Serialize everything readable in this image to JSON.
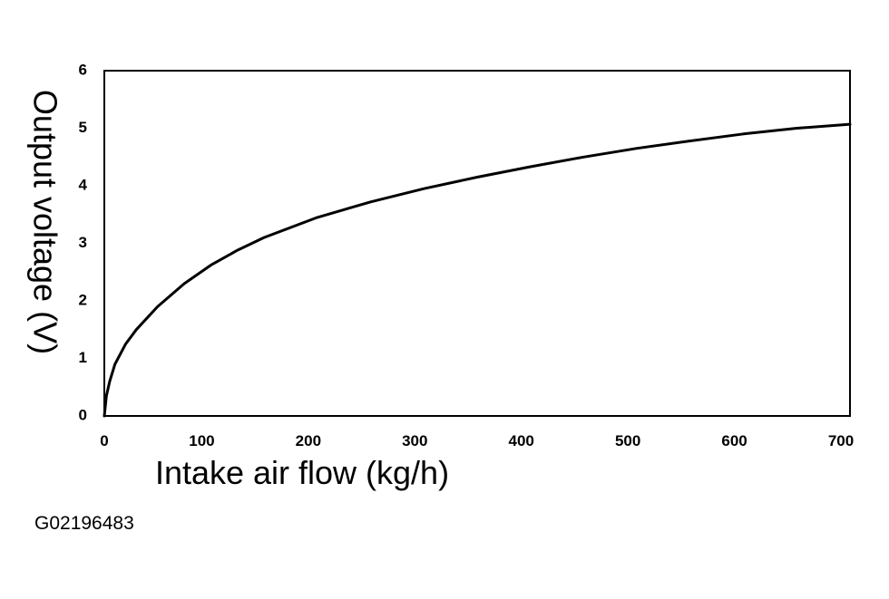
{
  "chart_data": {
    "type": "line",
    "title": "",
    "xlabel": "Intake air flow (kg/h)",
    "ylabel": "Output voltage (V)",
    "xlim": [
      0,
      700
    ],
    "ylim": [
      0,
      6
    ],
    "xticks": [
      0,
      100,
      200,
      300,
      400,
      500,
      600,
      700
    ],
    "yticks": [
      0,
      1,
      2,
      3,
      4,
      5,
      6
    ],
    "grid": false,
    "legend": "none",
    "line_color": "#000000",
    "series": [
      {
        "x": [
          0,
          2,
          5,
          10,
          20,
          30,
          50,
          75,
          100,
          125,
          150,
          200,
          250,
          300,
          350,
          400,
          450,
          500,
          550,
          600,
          650,
          700
        ],
        "values": [
          0,
          0.35,
          0.6,
          0.9,
          1.25,
          1.5,
          1.9,
          2.3,
          2.62,
          2.88,
          3.1,
          3.45,
          3.72,
          3.95,
          4.15,
          4.33,
          4.5,
          4.65,
          4.78,
          4.9,
          5.0,
          5.07
        ]
      }
    ]
  },
  "figure_id": "G02196483"
}
